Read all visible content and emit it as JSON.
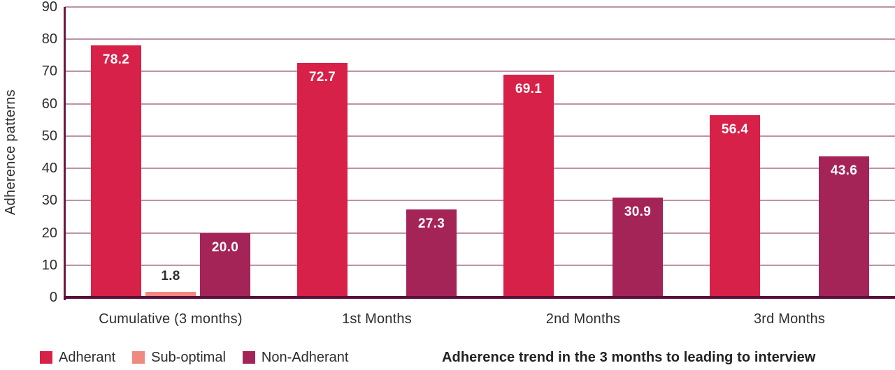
{
  "chart_data": {
    "type": "bar",
    "title": "Adherence trend in the 3 months to leading to interview",
    "ylabel": "Adherence patterns",
    "xlabel": "",
    "ylim": [
      0,
      90
    ],
    "yticks": [
      0,
      10,
      20,
      30,
      40,
      50,
      60,
      70,
      80,
      90
    ],
    "grid": true,
    "legend_position": "bottom-left",
    "categories": [
      "Cumulative (3 months)",
      "1st Months",
      "2nd Months",
      "3rd Months"
    ],
    "series": [
      {
        "name": "Adherant",
        "color": "#d82148",
        "values": [
          78.2,
          72.7,
          69.1,
          56.4
        ]
      },
      {
        "name": "Sub-optimal",
        "color": "#f0897f",
        "values": [
          1.8,
          null,
          null,
          null
        ]
      },
      {
        "name": "Non-Adherant",
        "color": "#a52458",
        "values": [
          20.0,
          27.3,
          30.9,
          43.6
        ]
      }
    ],
    "value_label_decimals": 1
  },
  "styles": {
    "grid_color": "#bc93a8",
    "axis_color": "#6e1746",
    "baseline_color": "#5b0e3a",
    "text_color": "#2d2d2d",
    "value_label_inside_color": "#ffffff",
    "value_label_outside_color": "#2d2d2d"
  }
}
